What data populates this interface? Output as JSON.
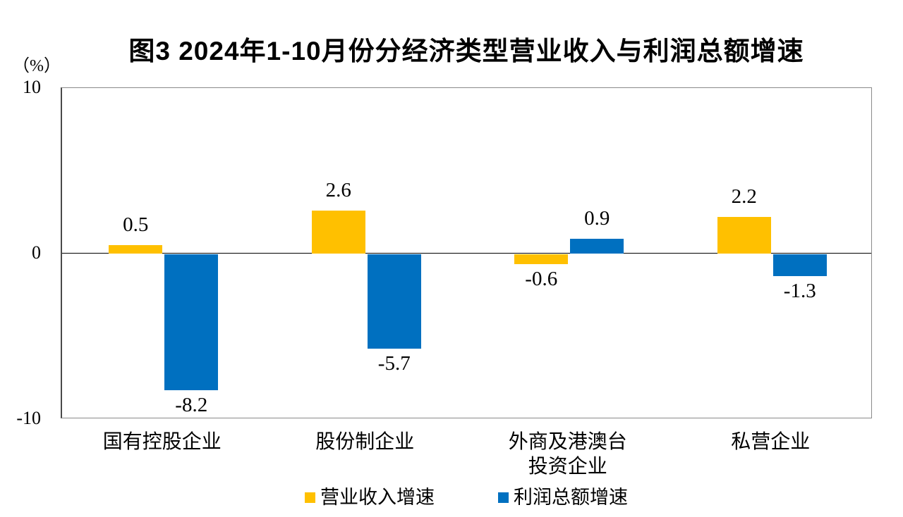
{
  "chart_data": {
    "type": "bar",
    "title": "图3  2024年1-10月份分经济类型营业收入与利润总额增速",
    "unit_label": "（%）",
    "categories": [
      [
        "国有控股企业"
      ],
      [
        "股份制企业"
      ],
      [
        "外商及港澳台",
        "投资企业"
      ],
      [
        "私营企业"
      ]
    ],
    "series": [
      {
        "name": "营业收入增速",
        "color": "#FFC000",
        "values": [
          0.5,
          2.6,
          -0.6,
          2.2
        ]
      },
      {
        "name": "利润总额增速",
        "color": "#0070C0",
        "values": [
          -8.2,
          -5.7,
          0.9,
          -1.3
        ]
      }
    ],
    "value_label_decimals": 1,
    "ylim": [
      -10,
      10
    ],
    "yticks": [
      "10",
      "0",
      "-10"
    ],
    "grid": false,
    "legend_position": "bottom",
    "colors": {
      "frame": "#8a8a8a",
      "zero_line": "#000000",
      "text": "#000000",
      "background": "#ffffff"
    }
  }
}
